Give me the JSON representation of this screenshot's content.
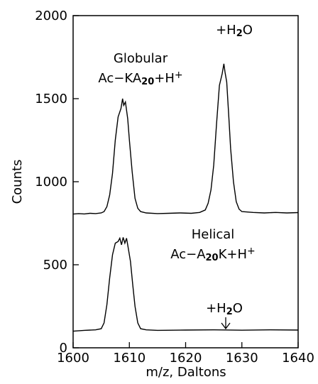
{
  "chart_data": {
    "type": "line",
    "xlabel": "m/z, Daltons",
    "ylabel": "Counts",
    "xlim": [
      1600,
      1640
    ],
    "xticks": [
      1600,
      1610,
      1620,
      1630,
      1640
    ],
    "ylim": [
      0,
      2000
    ],
    "yticks": [
      0,
      500,
      1000,
      1500,
      2000
    ],
    "series": [
      {
        "name": "Globular",
        "color": "#000000",
        "x": [
          1600,
          1601,
          1602,
          1603,
          1604,
          1605,
          1605.5,
          1606,
          1606.5,
          1607,
          1607.5,
          1608,
          1608.5,
          1608.8,
          1609,
          1609.3,
          1609.7,
          1610,
          1610.5,
          1611,
          1611.5,
          1612,
          1613,
          1615,
          1617,
          1619,
          1621,
          1622.5,
          1623.5,
          1624,
          1624.5,
          1625,
          1625.5,
          1626,
          1626.5,
          1626.8,
          1627,
          1627.3,
          1627.7,
          1628,
          1628.5,
          1629,
          1629.5,
          1630,
          1632,
          1634,
          1636,
          1638,
          1640
        ],
        "values": [
          805,
          808,
          806,
          810,
          808,
          812,
          820,
          850,
          920,
          1050,
          1250,
          1390,
          1440,
          1500,
          1460,
          1480,
          1380,
          1250,
          1060,
          900,
          840,
          820,
          812,
          808,
          810,
          812,
          810,
          815,
          830,
          870,
          950,
          1100,
          1350,
          1580,
          1650,
          1710,
          1660,
          1600,
          1380,
          1200,
          1000,
          880,
          835,
          820,
          815,
          812,
          815,
          812,
          814
        ]
      },
      {
        "name": "Helical",
        "color": "#000000",
        "x": [
          1600,
          1602,
          1604,
          1605,
          1605.5,
          1606,
          1606.5,
          1607,
          1607.5,
          1608,
          1608.3,
          1608.6,
          1608.9,
          1609.2,
          1609.5,
          1609.8,
          1610.2,
          1610.6,
          1611,
          1611.5,
          1612,
          1613,
          1615,
          1620,
          1625,
          1630,
          1635,
          1640
        ],
        "values": [
          100,
          105,
          108,
          115,
          150,
          260,
          420,
          560,
          630,
          640,
          660,
          620,
          665,
          630,
          660,
          600,
          520,
          380,
          250,
          150,
          115,
          108,
          105,
          107,
          108,
          106,
          108,
          107
        ]
      }
    ],
    "annotations": [
      [
        {
          "text": "Globular"
        }
      ],
      [
        {
          "text": "Ac−KA"
        },
        {
          "text": "20",
          "sub": true
        },
        {
          "text": "+H"
        },
        {
          "text": "+",
          "sup": true
        }
      ],
      [
        {
          "text": "+H"
        },
        {
          "text": "2",
          "sub": true
        },
        {
          "text": "O"
        }
      ],
      [
        {
          "text": "Helical"
        }
      ],
      [
        {
          "text": "Ac−A"
        },
        {
          "text": "20",
          "sub": true
        },
        {
          "text": "K+H"
        },
        {
          "text": "+",
          "sup": true
        }
      ],
      [
        {
          "text": "+H"
        },
        {
          "text": "2",
          "sub": true
        },
        {
          "text": "O"
        }
      ]
    ]
  }
}
